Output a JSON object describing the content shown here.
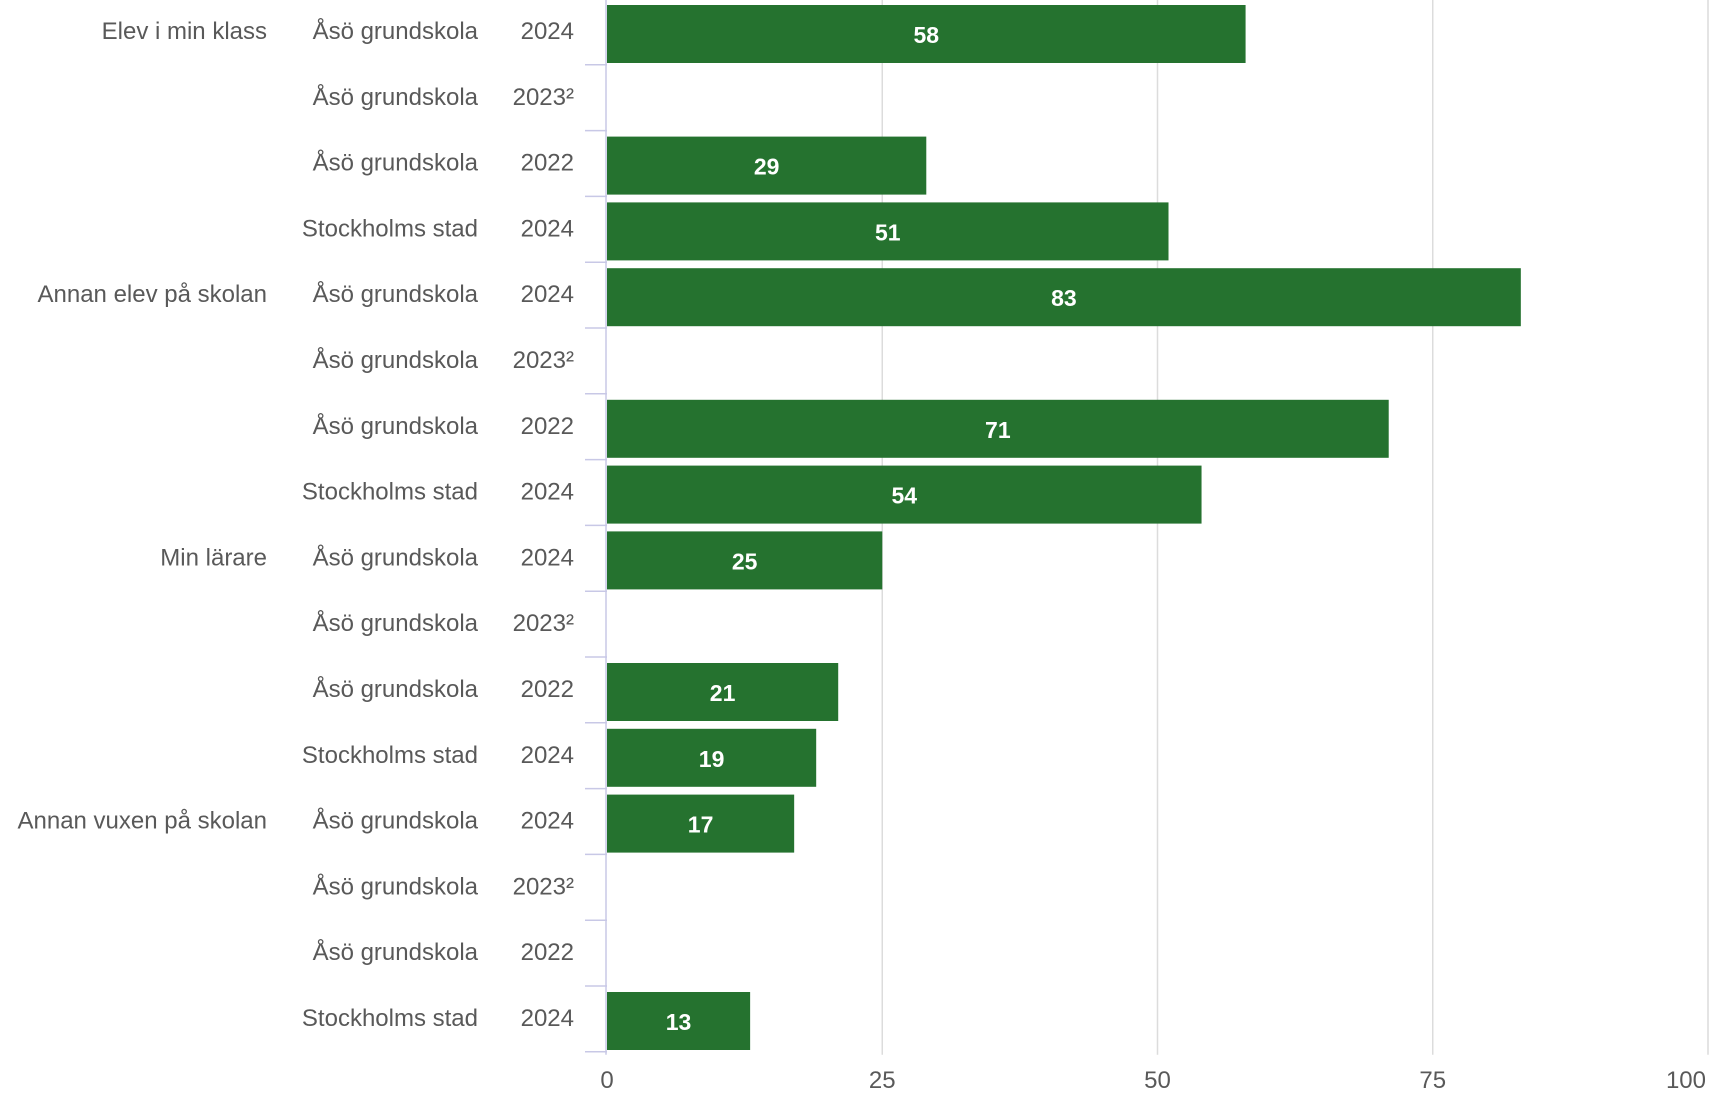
{
  "chart_data": {
    "type": "bar",
    "orientation": "horizontal",
    "title": "",
    "xlabel": "",
    "ylabel": "",
    "xlim": [
      0,
      100
    ],
    "x_ticks": [
      "0",
      "25",
      "50",
      "75",
      "100"
    ],
    "grid": true,
    "bar_color": "#25722f",
    "rows": [
      {
        "group": "Elev i min klass",
        "school": "Åsö grundskola",
        "year": "2024",
        "value": 58,
        "value_label": "58"
      },
      {
        "group": "",
        "school": "Åsö grundskola",
        "year": "2023²",
        "value": null,
        "value_label": ""
      },
      {
        "group": "",
        "school": "Åsö grundskola",
        "year": "2022",
        "value": 29,
        "value_label": "29"
      },
      {
        "group": "",
        "school": "Stockholms stad",
        "year": "2024",
        "value": 51,
        "value_label": "51"
      },
      {
        "group": "Annan elev på skolan",
        "school": "Åsö grundskola",
        "year": "2024",
        "value": 83,
        "value_label": "83"
      },
      {
        "group": "",
        "school": "Åsö grundskola",
        "year": "2023²",
        "value": null,
        "value_label": ""
      },
      {
        "group": "",
        "school": "Åsö grundskola",
        "year": "2022",
        "value": 71,
        "value_label": "71"
      },
      {
        "group": "",
        "school": "Stockholms stad",
        "year": "2024",
        "value": 54,
        "value_label": "54"
      },
      {
        "group": "Min lärare",
        "school": "Åsö grundskola",
        "year": "2024",
        "value": 25,
        "value_label": "25"
      },
      {
        "group": "",
        "school": "Åsö grundskola",
        "year": "2023²",
        "value": null,
        "value_label": ""
      },
      {
        "group": "",
        "school": "Åsö grundskola",
        "year": "2022",
        "value": 21,
        "value_label": "21"
      },
      {
        "group": "",
        "school": "Stockholms stad",
        "year": "2024",
        "value": 19,
        "value_label": "19"
      },
      {
        "group": "Annan vuxen på skolan",
        "school": "Åsö grundskola",
        "year": "2024",
        "value": 17,
        "value_label": "17"
      },
      {
        "group": "",
        "school": "Åsö grundskola",
        "year": "2023²",
        "value": null,
        "value_label": ""
      },
      {
        "group": "",
        "school": "Åsö grundskola",
        "year": "2022",
        "value": null,
        "value_label": ""
      },
      {
        "group": "",
        "school": "Stockholms stad",
        "year": "2024",
        "value": 13,
        "value_label": "13"
      }
    ]
  }
}
